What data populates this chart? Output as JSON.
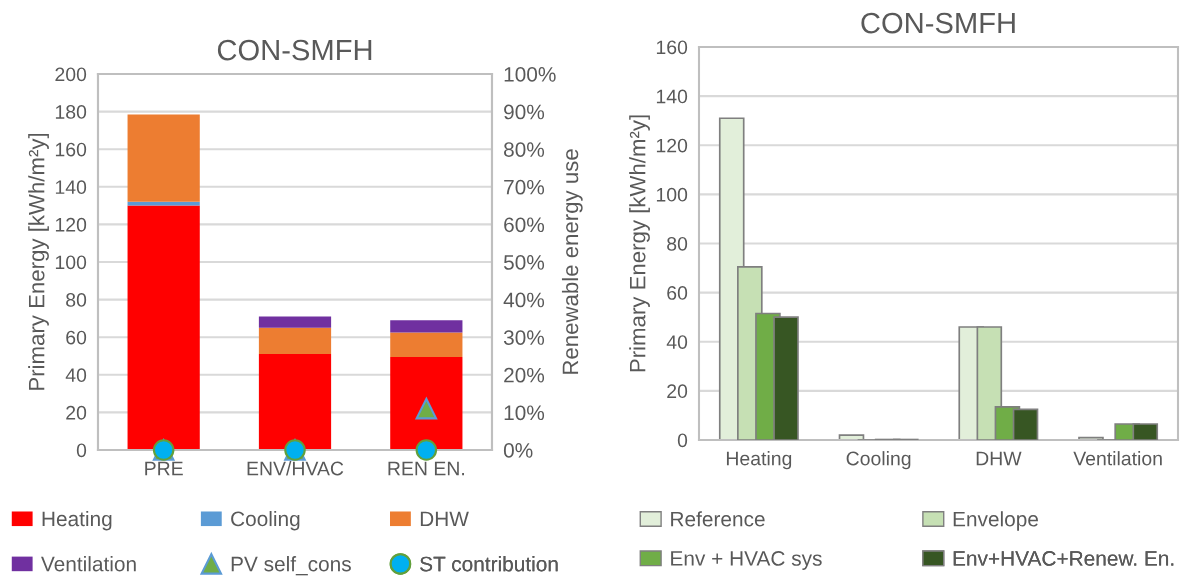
{
  "chart_data": [
    {
      "type": "bar",
      "title": "CON-SMFH",
      "ylabel": "Primary Energy [kWh/m²y]",
      "y2label": "Renewable energy use",
      "stacked": true,
      "categories": [
        "PRE",
        "ENV/HVAC",
        "REN EN."
      ],
      "series": [
        {
          "name": "Heating",
          "color": "#ff0000",
          "values": [
            130,
            51,
            49.5
          ]
        },
        {
          "name": "Cooling",
          "color": "#5b9bd5",
          "values": [
            2,
            0,
            0
          ]
        },
        {
          "name": "DHW",
          "color": "#ed7d31",
          "values": [
            46.5,
            14,
            13
          ]
        },
        {
          "name": "Ventilation",
          "color": "#7030a0",
          "values": [
            0,
            6,
            6.5
          ]
        },
        {
          "name": "PV self_cons",
          "type": "scatter",
          "axis": "y2",
          "marker": "triangle",
          "color": "#70ad47",
          "values": [
            0,
            0,
            11
          ]
        },
        {
          "name": "ST contribution",
          "type": "scatter",
          "axis": "y2",
          "marker": "circle",
          "color": "#00b0f0",
          "values": [
            0,
            0,
            0
          ]
        }
      ],
      "ylim": [
        0,
        200
      ],
      "yticks": [
        0,
        20,
        40,
        60,
        80,
        100,
        120,
        140,
        160,
        180,
        200
      ],
      "y2lim": [
        0,
        100
      ],
      "y2ticks": [
        {
          "value": 0,
          "label": "0%"
        },
        {
          "value": 10,
          "label": "10%"
        },
        {
          "value": 20,
          "label": "20%"
        },
        {
          "value": 30,
          "label": "30%"
        },
        {
          "value": 40,
          "label": "40%"
        },
        {
          "value": 50,
          "label": "50%"
        },
        {
          "value": 60,
          "label": "60%"
        },
        {
          "value": 70,
          "label": "70%"
        },
        {
          "value": 80,
          "label": "80%"
        },
        {
          "value": 90,
          "label": "90%"
        },
        {
          "value": 100,
          "label": "100%"
        }
      ],
      "grid": "y",
      "legend": "bottom"
    },
    {
      "type": "bar",
      "title": "CON-SMFH",
      "ylabel": "Primary Energy [kWh/m²y]",
      "categories": [
        "Heating",
        "Cooling",
        "DHW",
        "Ventilation"
      ],
      "series": [
        {
          "name": "Reference",
          "color": "#e2efda",
          "values": [
            131,
            2,
            46,
            1
          ]
        },
        {
          "name": "Envelope",
          "color": "#c6e0b4",
          "values": [
            70.5,
            null,
            46,
            null
          ]
        },
        {
          "name": "Env + HVAC sys",
          "color": "#70ad47",
          "values": [
            51.5,
            0.2,
            13.5,
            6.5
          ]
        },
        {
          "name": "Env+HVAC+Renew. En.",
          "color": "#375623",
          "values": [
            50,
            0.2,
            12.5,
            6.5
          ]
        }
      ],
      "ylim": [
        0,
        160
      ],
      "yticks": [
        0,
        20,
        40,
        60,
        80,
        100,
        120,
        140,
        160
      ],
      "grid": "y",
      "legend": "bottom"
    }
  ]
}
